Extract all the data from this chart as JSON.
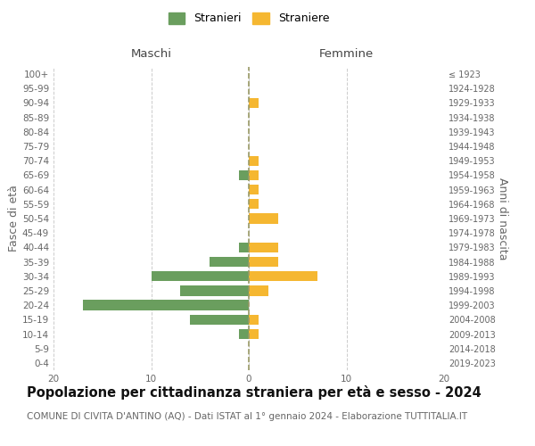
{
  "age_groups": [
    "0-4",
    "5-9",
    "10-14",
    "15-19",
    "20-24",
    "25-29",
    "30-34",
    "35-39",
    "40-44",
    "45-49",
    "50-54",
    "55-59",
    "60-64",
    "65-69",
    "70-74",
    "75-79",
    "80-84",
    "85-89",
    "90-94",
    "95-99",
    "100+"
  ],
  "birth_years": [
    "2019-2023",
    "2014-2018",
    "2009-2013",
    "2004-2008",
    "1999-2003",
    "1994-1998",
    "1989-1993",
    "1984-1988",
    "1979-1983",
    "1974-1978",
    "1969-1973",
    "1964-1968",
    "1959-1963",
    "1954-1958",
    "1949-1953",
    "1944-1948",
    "1939-1943",
    "1934-1938",
    "1929-1933",
    "1924-1928",
    "≤ 1923"
  ],
  "maschi": [
    0,
    0,
    1,
    6,
    17,
    7,
    10,
    4,
    1,
    0,
    0,
    0,
    0,
    1,
    0,
    0,
    0,
    0,
    0,
    0,
    0
  ],
  "femmine": [
    0,
    0,
    1,
    1,
    0,
    2,
    7,
    3,
    3,
    0,
    3,
    1,
    1,
    1,
    1,
    0,
    0,
    0,
    1,
    0,
    0
  ],
  "color_maschi": "#6a9e5e",
  "color_femmine": "#f5b731",
  "title": "Popolazione per cittadinanza straniera per età e sesso - 2024",
  "subtitle": "COMUNE DI CIVITA D'ANTINO (AQ) - Dati ISTAT al 1° gennaio 2024 - Elaborazione TUTTITALIA.IT",
  "xlabel_left": "Maschi",
  "xlabel_right": "Femmine",
  "ylabel_left": "Fasce di età",
  "ylabel_right": "Anni di nascita",
  "legend_maschi": "Stranieri",
  "legend_femmine": "Straniere",
  "xlim": 20,
  "bg_color": "#ffffff",
  "grid_color": "#cccccc",
  "bar_height": 0.7,
  "title_fontsize": 10.5,
  "subtitle_fontsize": 7.5,
  "tick_fontsize": 7.5,
  "label_fontsize": 9.5
}
